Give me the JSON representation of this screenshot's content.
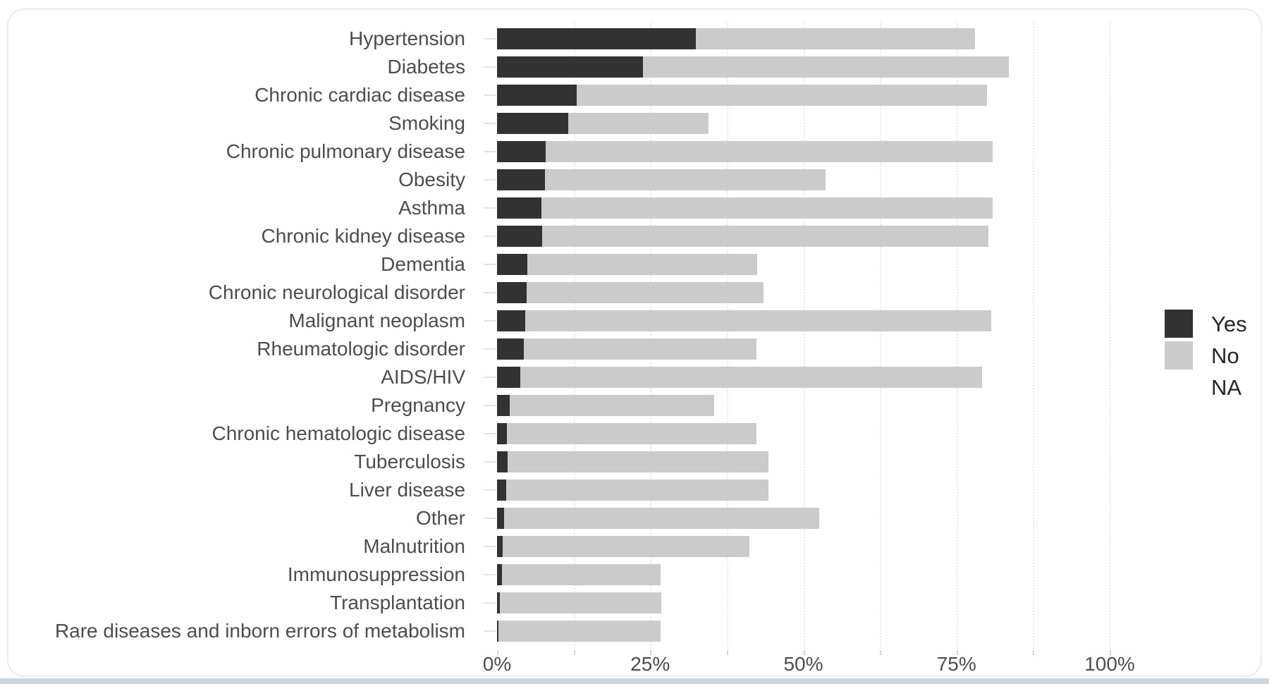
{
  "window": {
    "bottom_edge_color": "#ccd5e2",
    "card_border_color": "#ececec"
  },
  "chart_data": {
    "type": "bar",
    "orientation": "horizontal",
    "stacked": true,
    "title": "",
    "xlabel": "",
    "ylabel": "",
    "xlim": [
      0,
      100
    ],
    "grid": "vertical dotted minor gridlines every 12.5%",
    "legend_position": "right",
    "x_ticks": [
      {
        "label": "0%",
        "value": 0
      },
      {
        "label": "25%",
        "value": 25
      },
      {
        "label": "50%",
        "value": 50
      },
      {
        "label": "75%",
        "value": 75
      },
      {
        "label": "100%",
        "value": 100
      }
    ],
    "minor_grid_values": [
      12.5,
      25,
      37.5,
      50,
      62.5,
      75,
      87.5,
      100
    ],
    "legend": [
      {
        "label": "Yes",
        "color": "#333233"
      },
      {
        "label": "No",
        "color": "#cbcbcb"
      },
      {
        "label": "NA",
        "color": "#ffffff"
      }
    ],
    "categories": [
      "Hypertension",
      "Diabetes",
      "Chronic cardiac disease",
      "Smoking",
      "Chronic pulmonary disease",
      "Obesity",
      "Asthma",
      "Chronic kidney disease",
      "Dementia",
      "Chronic neurological disorder",
      "Malignant neoplasm",
      "Rheumatologic disorder",
      "AIDS/HIV",
      "Pregnancy",
      "Chronic hematologic disease",
      "Tuberculosis",
      "Liver disease",
      "Other",
      "Malnutrition",
      "Immunosuppression",
      "Transplantation",
      "Rare diseases and inborn errors of metabolism"
    ],
    "series": [
      {
        "name": "Yes",
        "color": "#333233",
        "values": [
          32.4,
          23.8,
          13.0,
          11.6,
          7.9,
          7.8,
          7.3,
          7.4,
          5.0,
          4.8,
          4.6,
          4.4,
          3.8,
          2.1,
          1.6,
          1.7,
          1.5,
          1.2,
          0.9,
          0.8,
          0.5,
          0.2
        ]
      },
      {
        "name": "No",
        "color": "#cbcbcb",
        "values": [
          45.6,
          59.8,
          67.0,
          22.9,
          73.0,
          45.8,
          73.6,
          72.8,
          37.5,
          38.7,
          76.1,
          37.9,
          75.4,
          33.3,
          40.8,
          42.6,
          42.8,
          51.4,
          40.3,
          25.9,
          26.3,
          26.5
        ]
      }
    ],
    "note_totals_percent": [
      78.0,
      83.6,
      80.0,
      34.5,
      80.9,
      53.6,
      80.9,
      80.2,
      42.5,
      43.5,
      80.7,
      42.3,
      79.2,
      35.4,
      42.4,
      44.3,
      44.3,
      52.6,
      41.2,
      26.7,
      26.8,
      26.7
    ]
  }
}
